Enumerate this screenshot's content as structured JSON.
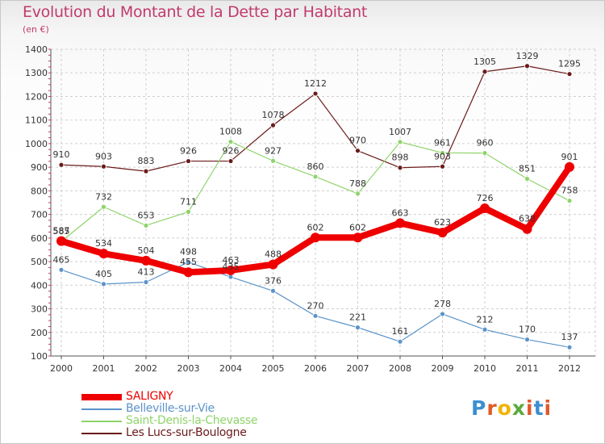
{
  "title": "Evolution du Montant de la Dette par Habitant",
  "subtitle": "(en €)",
  "logo": {
    "text": "Proxiti",
    "colors": [
      "#3c8fd0",
      "#e05a2a",
      "#f0b400",
      "#5aaa3c",
      "#e05a2a",
      "#3c8fd0",
      "#e05a2a"
    ]
  },
  "chart_data": {
    "type": "line",
    "title": "Evolution du Montant de la Dette par Habitant",
    "subtitle": "(en €)",
    "ylabel": "",
    "xlabel": "",
    "x": [
      "2000",
      "2001",
      "2002",
      "2003",
      "2004",
      "2005",
      "2006",
      "2007",
      "2008",
      "2009",
      "2010",
      "2011",
      "2012"
    ],
    "ylim": [
      100,
      1400
    ],
    "yticks": [
      100,
      200,
      300,
      400,
      500,
      600,
      700,
      800,
      900,
      1000,
      1100,
      1200,
      1300,
      1400
    ],
    "grid": true,
    "legend_position": "bottom-left",
    "series": [
      {
        "name": "SALIGNY",
        "color": "#ee0000",
        "values": [
          587,
          534,
          504,
          455,
          463,
          488,
          602,
          602,
          663,
          623,
          726,
          638,
          901
        ]
      },
      {
        "name": "Belleville-sur-Vie",
        "color": "#5b93c9",
        "values": [
          465,
          405,
          413,
          498,
          435,
          376,
          270,
          221,
          161,
          278,
          212,
          170,
          137
        ]
      },
      {
        "name": "Saint-Denis-la-Chevasse",
        "color": "#8fd46a",
        "values": [
          585,
          732,
          653,
          711,
          1008,
          927,
          860,
          788,
          1007,
          961,
          960,
          851,
          758
        ]
      },
      {
        "name": "Les Lucs-sur-Boulogne",
        "color": "#6b1a1a",
        "values": [
          910,
          903,
          883,
          926,
          926,
          1078,
          1212,
          970,
          898,
          903,
          1305,
          1329,
          1295
        ]
      }
    ]
  }
}
